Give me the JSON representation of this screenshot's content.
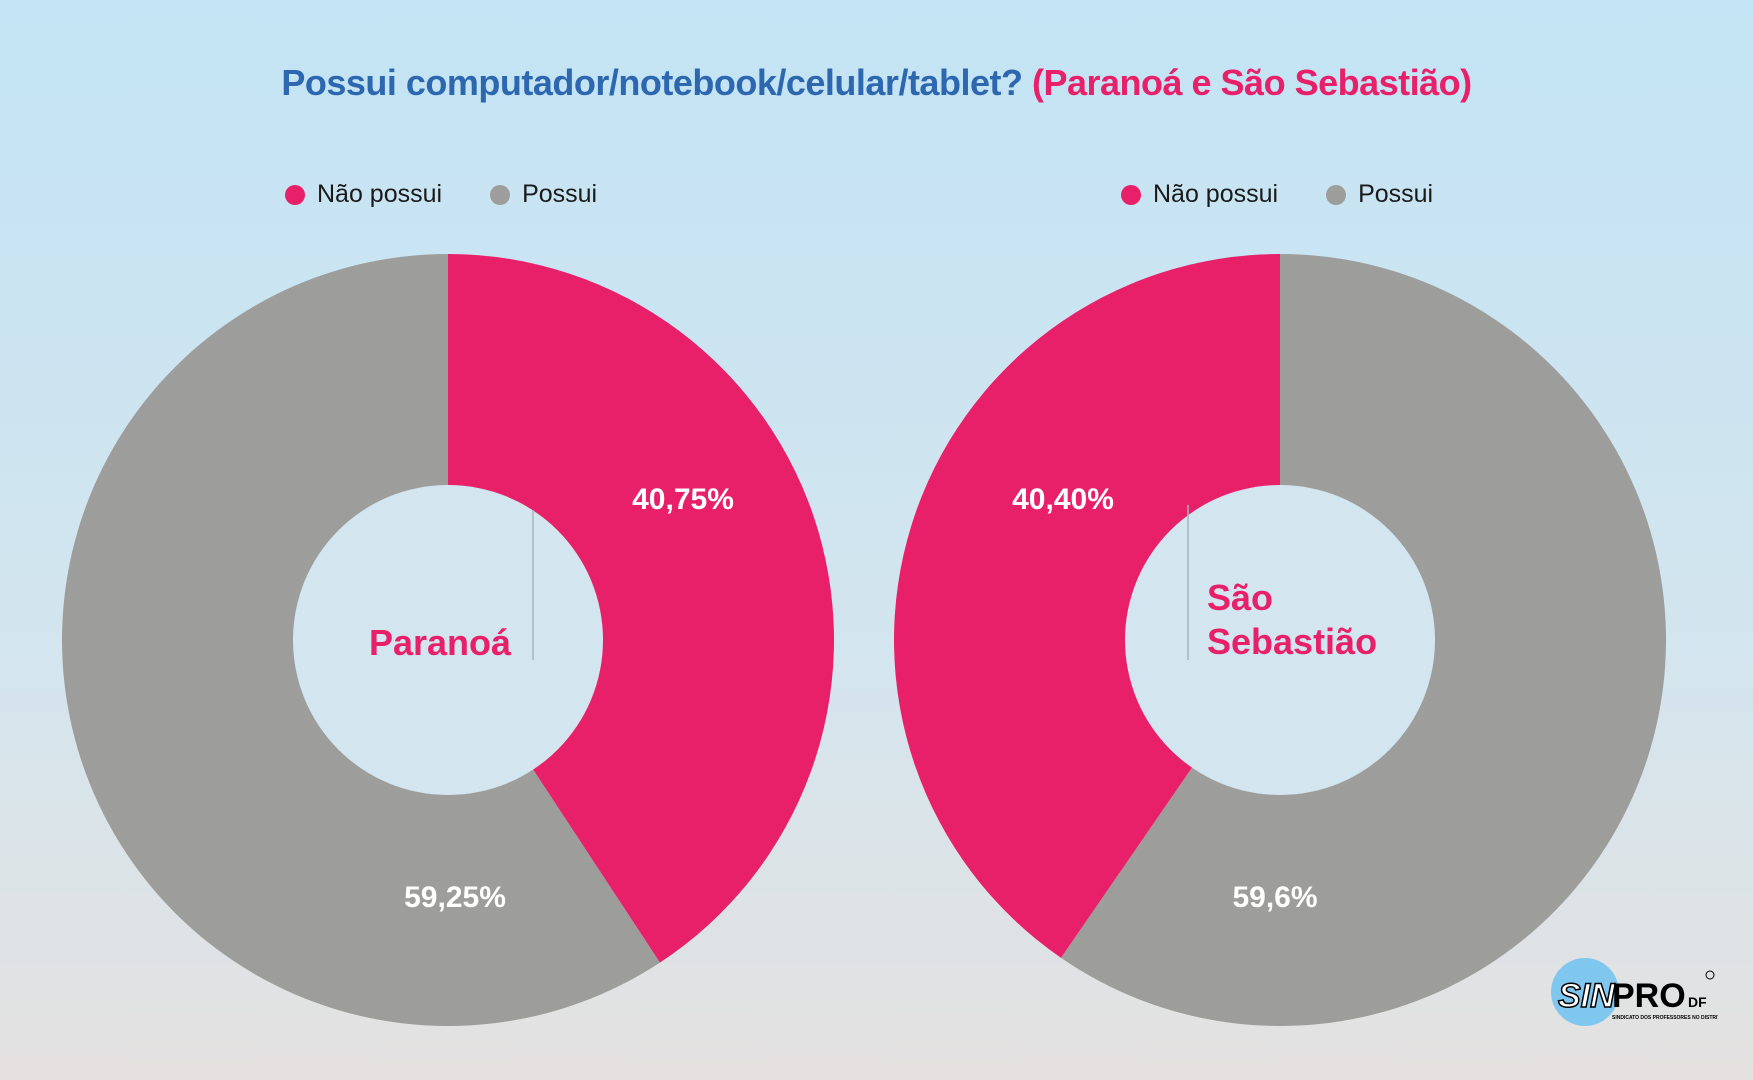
{
  "title": {
    "main": "Possui computador/notebook/celular/tablet?",
    "sub": "(Paranoá e São Sebastião)"
  },
  "colors": {
    "nao_possui": "#e8206a",
    "possui": "#9d9d9b",
    "hole": "#d3e5ee",
    "title_blue": "#2d67b0",
    "title_pink": "#e8206a"
  },
  "chart_data": [
    {
      "type": "pie",
      "center_label": "Paranoá",
      "legend": [
        "Não possui",
        "Possui"
      ],
      "slices": [
        {
          "label": "Não possui",
          "value": 40.75,
          "display": "40,75%"
        },
        {
          "label": "Possui",
          "value": 59.25,
          "display": "59,25%"
        }
      ]
    },
    {
      "type": "pie",
      "center_label": "São Sebastião",
      "legend": [
        "Não possui",
        "Possui"
      ],
      "slices": [
        {
          "label": "Não possui",
          "value": 40.4,
          "display": "40,40%"
        },
        {
          "label": "Possui",
          "value": 59.6,
          "display": "59,6%"
        }
      ]
    }
  ],
  "logo": {
    "text_sin": "SIN",
    "text_pro": "PRO",
    "text_df": "DF",
    "subtitle": "SINDICATO DOS PROFESSORES NO DISTRITO FEDERAL"
  }
}
